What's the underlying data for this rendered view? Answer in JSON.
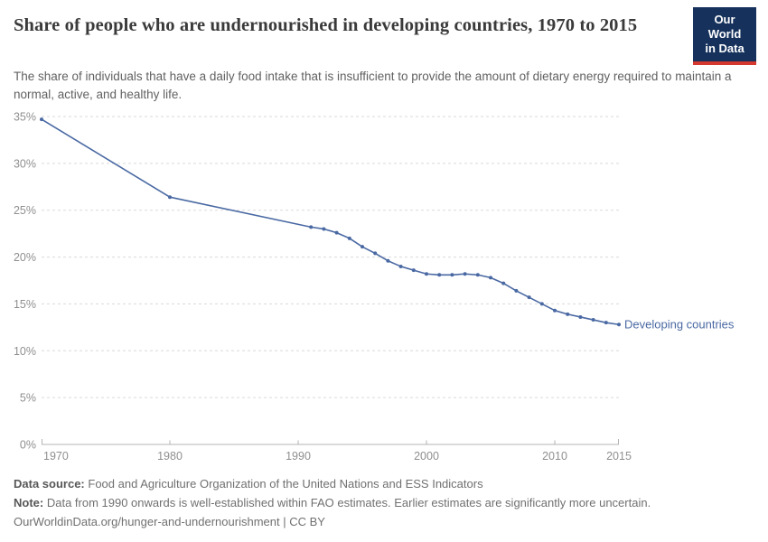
{
  "header": {
    "title": "Share of people who are undernourished in developing countries, 1970 to 2015",
    "subtitle": "The share of individuals that have a daily food intake that is insufficient to provide the amount of dietary energy required to maintain a normal, active, and healthy life.",
    "logo": {
      "line1": "Our World",
      "line2": "in Data",
      "bg_color": "#16325c",
      "accent_color": "#d4382f"
    }
  },
  "chart_data": {
    "type": "line",
    "title": "Share of people who are undernourished in developing countries, 1970 to 2015",
    "xlabel": "",
    "ylabel": "",
    "xlim": [
      1970,
      2015
    ],
    "ylim": [
      0,
      35
    ],
    "x_ticks": [
      1970,
      1980,
      1990,
      2000,
      2010,
      2015
    ],
    "y_ticks": [
      0,
      5,
      10,
      15,
      20,
      25,
      30,
      35
    ],
    "y_tick_suffix": "%",
    "grid": "horizontal dashed",
    "legend_position": "label at end of line",
    "series": [
      {
        "name": "Developing countries",
        "color": "#4a69a3",
        "points": [
          [
            1970,
            34.7
          ],
          [
            1980,
            26.4
          ],
          [
            1991,
            23.2
          ],
          [
            1992,
            23.0
          ],
          [
            1993,
            22.6
          ],
          [
            1994,
            22.0
          ],
          [
            1995,
            21.1
          ],
          [
            1996,
            20.4
          ],
          [
            1997,
            19.6
          ],
          [
            1998,
            19.0
          ],
          [
            1999,
            18.6
          ],
          [
            2000,
            18.2
          ],
          [
            2001,
            18.1
          ],
          [
            2002,
            18.1
          ],
          [
            2003,
            18.2
          ],
          [
            2004,
            18.1
          ],
          [
            2005,
            17.8
          ],
          [
            2006,
            17.2
          ],
          [
            2007,
            16.4
          ],
          [
            2008,
            15.7
          ],
          [
            2009,
            15.0
          ],
          [
            2010,
            14.3
          ],
          [
            2011,
            13.9
          ],
          [
            2012,
            13.6
          ],
          [
            2013,
            13.3
          ],
          [
            2014,
            13.0
          ],
          [
            2015,
            12.8
          ]
        ]
      }
    ]
  },
  "footer": {
    "data_source_label": "Data source:",
    "data_source_text": "Food and Agriculture Organization of the United Nations and ESS Indicators",
    "note_label": "Note:",
    "note_text": "Data from 1990 onwards is well-established within FAO estimates. Earlier estimates are significantly more uncertain.",
    "license_text": "OurWorldinData.org/hunger-and-undernourishment | CC BY"
  }
}
